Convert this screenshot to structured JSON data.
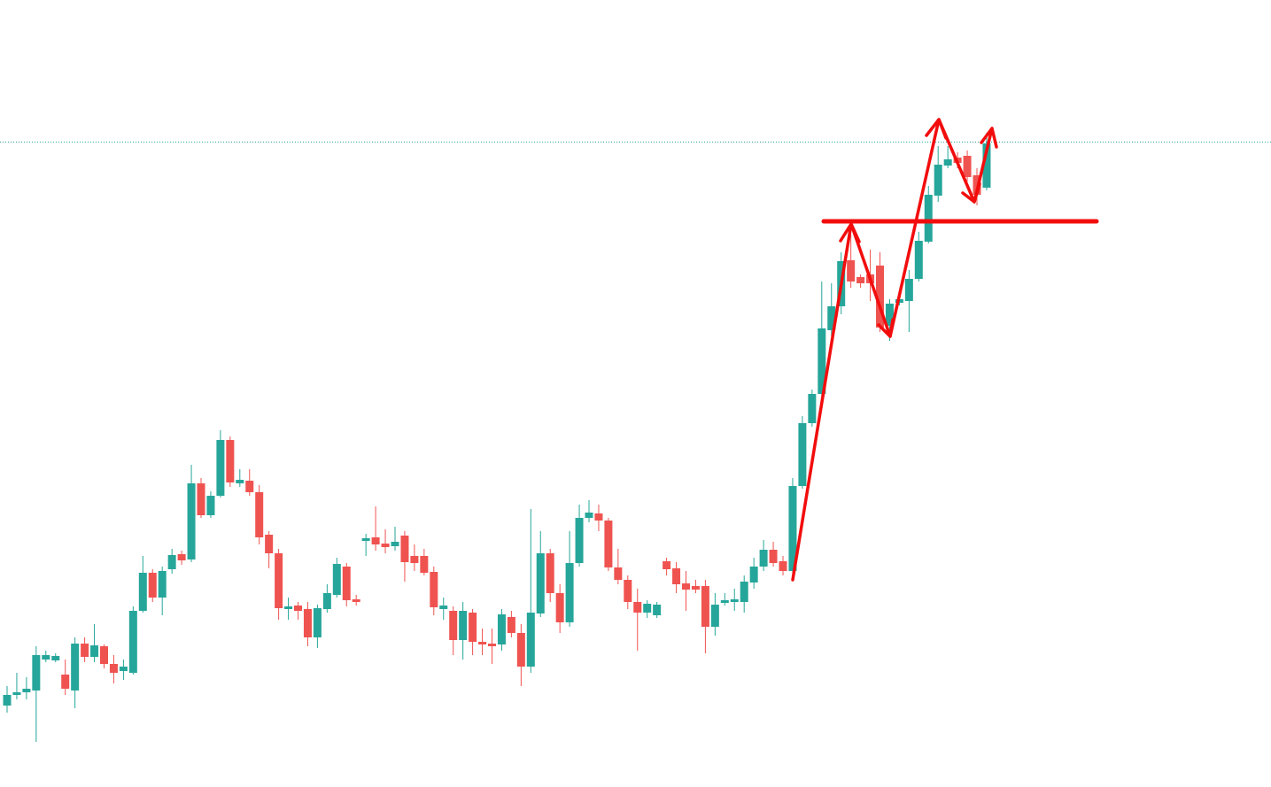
{
  "chart_data": {
    "type": "candlestick",
    "up_color": "#26a69a",
    "down_color": "#ef5350",
    "ylim": [
      0,
      889
    ],
    "open": [
      92,
      104,
      107,
      109,
      144,
      143,
      127,
      109,
      162,
      147,
      159,
      139,
      131,
      129,
      199,
      242,
      214,
      246,
      263,
      257,
      343,
      307,
      329,
      392,
      343,
      346,
      333,
      285,
      264,
      201,
      205,
      201,
      169,
      201,
      217,
      249,
      212,
      278,
      282,
      275,
      272,
      284,
      261,
      261,
      243,
      201,
      199,
      166,
      197,
      164,
      162,
      161,
      192,
      174,
      136,
      196,
      264,
      219,
      186,
      253,
      304,
      309,
      301,
      248,
      234,
      209,
      197,
      194,
      255,
      247,
      230,
      227,
      227,
      181,
      208,
      209,
      209,
      231,
      249,
      268,
      255,
      244,
      340,
      411,
      444,
      516,
      543,
      595,
      576,
      579,
      589,
      521,
      547,
      549,
      574,
      616,
      668,
      702,
      711,
      713,
      691,
      677
    ],
    "high": [
      114,
      129,
      124,
      159,
      154,
      151,
      144,
      169,
      169,
      184,
      161,
      149,
      144,
      204,
      261,
      246,
      249,
      269,
      267,
      364,
      349,
      334,
      403,
      396,
      359,
      359,
      341,
      289,
      269,
      214,
      209,
      209,
      206,
      229,
      259,
      253,
      217,
      286,
      317,
      291,
      294,
      289,
      274,
      269,
      249,
      214,
      204,
      209,
      201,
      179,
      179,
      201,
      199,
      184,
      314,
      289,
      269,
      229,
      289,
      319,
      324,
      319,
      304,
      269,
      239,
      224,
      211,
      209,
      259,
      254,
      244,
      234,
      234,
      219,
      219,
      224,
      239,
      259,
      279,
      277,
      261,
      349,
      419,
      449,
      571,
      569,
      604,
      624,
      579,
      607,
      604,
      551,
      559,
      584,
      627,
      679,
      724,
      724,
      717,
      719,
      699,
      739
    ],
    "low": [
      84,
      99,
      99,
      51,
      141,
      141,
      104,
      89,
      141,
      141,
      134,
      117,
      121,
      127,
      197,
      209,
      194,
      241,
      251,
      254,
      304,
      304,
      327,
      339,
      339,
      329,
      274,
      247,
      189,
      189,
      189,
      159,
      157,
      197,
      214,
      204,
      205,
      261,
      267,
      264,
      267,
      232,
      244,
      239,
      194,
      189,
      149,
      144,
      149,
      149,
      139,
      154,
      169,
      114,
      129,
      192,
      209,
      174,
      181,
      249,
      299,
      289,
      244,
      229,
      201,
      154,
      191,
      191,
      239,
      219,
      199,
      219,
      151,
      171,
      205,
      199,
      197,
      224,
      244,
      249,
      239,
      239,
      337,
      407,
      439,
      509,
      534,
      564,
      564,
      549,
      514,
      504,
      544,
      514,
      571,
      614,
      661,
      699,
      699,
      684,
      657,
      674
    ],
    "close": [
      104,
      107,
      111,
      149,
      149,
      148,
      111,
      162,
      147,
      160,
      139,
      129,
      136,
      199,
      242,
      214,
      244,
      262,
      256,
      343,
      307,
      329,
      392,
      344,
      347,
      333,
      282,
      264,
      202,
      204,
      199,
      169,
      202,
      219,
      252,
      211,
      209,
      281,
      274,
      271,
      277,
      254,
      253,
      242,
      203,
      205,
      166,
      199,
      164,
      161,
      159,
      195,
      174,
      136,
      197,
      264,
      219,
      186,
      253,
      304,
      310,
      301,
      248,
      234,
      209,
      197,
      207,
      206,
      246,
      229,
      223,
      223,
      181,
      206,
      211,
      212,
      232,
      249,
      268,
      253,
      244,
      340,
      411,
      444,
      518,
      543,
      594,
      571,
      569,
      569,
      519,
      546,
      551,
      574,
      617,
      669,
      703,
      709,
      705,
      689,
      669,
      727
    ]
  }
}
